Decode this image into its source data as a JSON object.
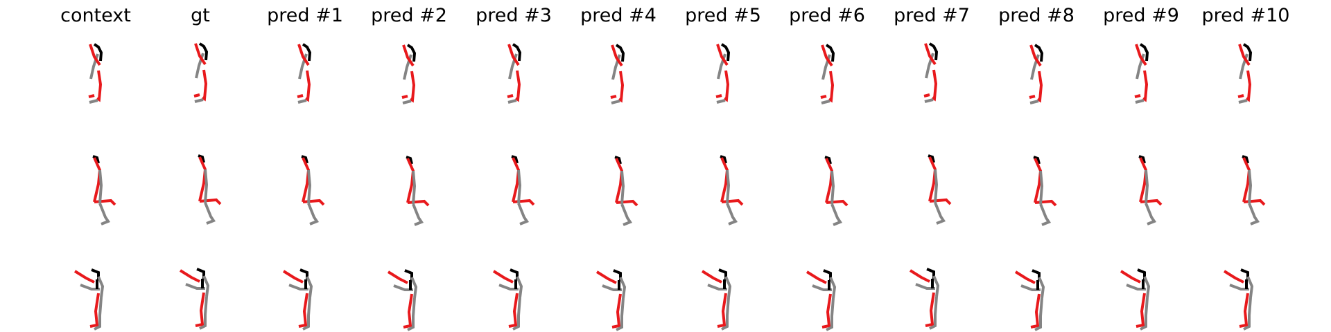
{
  "columns": [
    "context",
    "gt",
    "pred #1",
    "pred #2",
    "pred #3",
    "pred #4",
    "pred #5",
    "pred #6",
    "pred #7",
    "pred #8",
    "pred #9",
    "pred #10"
  ],
  "rows": 3,
  "colors": {
    "right_side": "#e8191c",
    "left_side": "#848484",
    "spine_head": "#000000",
    "background": "#ffffff"
  },
  "poses": [
    {
      "pose": "standing-head-tilted",
      "bones": [
        {
          "side": "spine_head",
          "pts": [
            [
              -2,
              -78
            ],
            [
              4,
              -74
            ],
            [
              8,
              -66
            ],
            [
              7,
              -54
            ]
          ]
        },
        {
          "side": "left_side",
          "pts": [
            [
              3,
              -64
            ],
            [
              -3,
              -46
            ],
            [
              -7,
              -28
            ]
          ]
        },
        {
          "side": "right_side",
          "pts": [
            [
              -8,
              -78
            ],
            [
              -2,
              -60
            ],
            [
              6,
              -48
            ]
          ]
        },
        {
          "side": "right_side",
          "pts": [
            [
              4,
              -40
            ],
            [
              7,
              -20
            ],
            [
              5,
              2
            ],
            [
              2,
              0
            ]
          ]
        },
        {
          "side": "right_side",
          "pts": [
            [
              -2,
              -4
            ],
            [
              -10,
              -2
            ]
          ]
        },
        {
          "side": "left_side",
          "pts": [
            [
              3,
              3
            ],
            [
              -9,
              6
            ]
          ]
        }
      ]
    },
    {
      "pose": "leg-raised",
      "bones": [
        {
          "side": "spine_head",
          "pts": [
            [
              -4,
              -80
            ],
            [
              2,
              -78
            ],
            [
              4,
              -70
            ]
          ]
        },
        {
          "side": "right_side",
          "pts": [
            [
              -2,
              -78
            ],
            [
              6,
              -60
            ],
            [
              4,
              -40
            ],
            [
              -2,
              -14
            ]
          ]
        },
        {
          "side": "right_side",
          "pts": [
            [
              -2,
              -14
            ],
            [
              22,
              -16
            ],
            [
              28,
              -10
            ]
          ]
        },
        {
          "side": "left_side",
          "pts": [
            [
              6,
              -60
            ],
            [
              8,
              -38
            ],
            [
              6,
              -12
            ]
          ]
        },
        {
          "side": "left_side",
          "pts": [
            [
              6,
              -12
            ],
            [
              14,
              8
            ],
            [
              18,
              14
            ],
            [
              8,
              18
            ]
          ]
        }
      ]
    },
    {
      "pose": "arm-raised",
      "bones": [
        {
          "side": "spine_head",
          "pts": [
            [
              -6,
              -80
            ],
            [
              4,
              -76
            ],
            [
              4,
              -66
            ]
          ]
        },
        {
          "side": "right_side",
          "pts": [
            [
              -30,
              -78
            ],
            [
              -14,
              -68
            ],
            [
              -2,
              -62
            ]
          ]
        },
        {
          "side": "left_side",
          "pts": [
            [
              -22,
              -58
            ],
            [
              -6,
              -52
            ],
            [
              6,
              -52
            ]
          ]
        },
        {
          "side": "spine_head",
          "pts": [
            [
              2,
              -66
            ],
            [
              2,
              -52
            ]
          ]
        },
        {
          "side": "left_side",
          "pts": [
            [
              4,
              -70
            ],
            [
              10,
              -56
            ],
            [
              8,
              -40
            ]
          ]
        },
        {
          "side": "right_side",
          "pts": [
            [
              4,
              -46
            ],
            [
              0,
              -20
            ],
            [
              2,
              0
            ],
            [
              -8,
              2
            ]
          ]
        },
        {
          "side": "left_side",
          "pts": [
            [
              8,
              -40
            ],
            [
              6,
              -14
            ],
            [
              6,
              2
            ],
            [
              -2,
              6
            ]
          ]
        }
      ]
    }
  ]
}
